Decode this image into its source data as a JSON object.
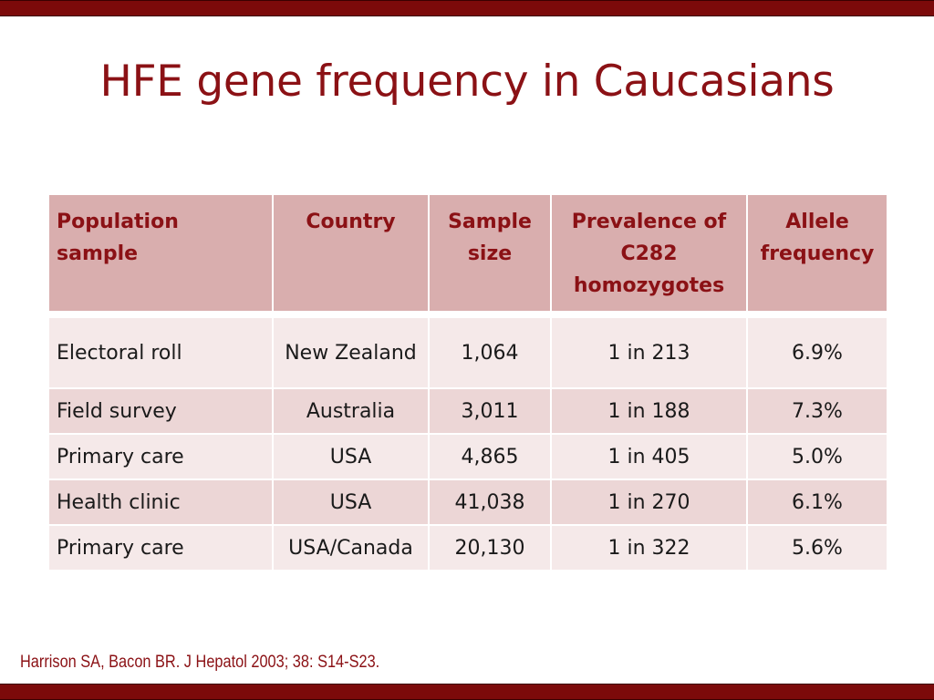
{
  "slide": {
    "title": "HFE gene frequency in Caucasians",
    "citation": "Harrison SA, Bacon BR. J Hepatol 2003; 38: S14-S23."
  },
  "colors": {
    "accent": "#8b1115",
    "bar": "#7c0a0a",
    "header_fill": "#d9aeae",
    "row_light": "#f5e9e9",
    "row_dark": "#ecd6d6"
  },
  "table": {
    "headers": [
      "Population sample",
      "Country",
      "Sample size",
      "Prevalence of C282 homozygotes",
      "Allele frequency"
    ],
    "rows": [
      [
        "Electoral roll",
        "New Zealand",
        "1,064",
        "1 in 213",
        "6.9%"
      ],
      [
        "Field survey",
        "Australia",
        "3,011",
        "1 in 188",
        "7.3%"
      ],
      [
        "Primary care",
        "USA",
        "4,865",
        "1 in 405",
        "5.0%"
      ],
      [
        "Health clinic",
        "USA",
        "41,038",
        "1 in 270",
        "6.1%"
      ],
      [
        "Primary care",
        "USA/Canada",
        "20,130",
        "1 in 322",
        "5.6%"
      ]
    ]
  }
}
